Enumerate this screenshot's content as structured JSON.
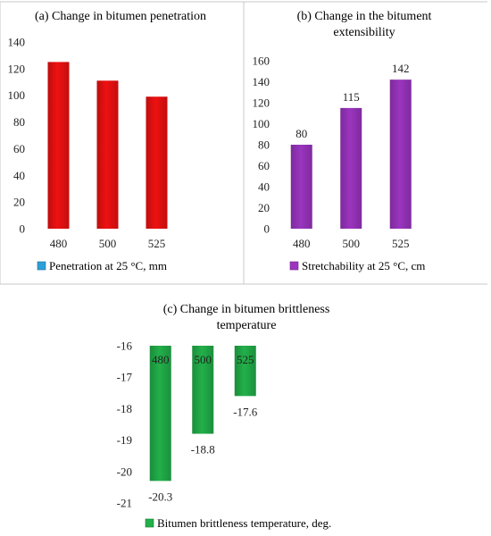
{
  "chart_data": [
    {
      "type": "bar",
      "title": "(a) Change in bitumen penetration",
      "categories": [
        "480",
        "500",
        "525"
      ],
      "series": [
        {
          "name": "Penetration at 25 °C, mm",
          "values": [
            125,
            111,
            99
          ],
          "color": "#ee1111"
        }
      ],
      "ylim": [
        0,
        140
      ],
      "yticks": [
        0,
        20,
        40,
        60,
        80,
        100,
        120,
        140
      ],
      "legend_marker_color": "#2e9fd6",
      "data_labels": false,
      "grid": false,
      "legend": "bottom"
    },
    {
      "type": "bar",
      "title": [
        "(b) Change in the bitument",
        "extensibility"
      ],
      "categories": [
        "480",
        "500",
        "525"
      ],
      "series": [
        {
          "name": "Stretchability at 25 °C, cm",
          "values": [
            80,
            115,
            142
          ],
          "color": "#9b35c0"
        }
      ],
      "ylim": [
        0,
        160
      ],
      "yticks": [
        0,
        20,
        40,
        60,
        80,
        100,
        120,
        140,
        160
      ],
      "legend_marker_color": "#9b35c0",
      "data_labels": true,
      "grid": false,
      "legend": "bottom"
    },
    {
      "type": "bar",
      "title": [
        "(c) Change in bitumen brittleness",
        "temperature"
      ],
      "categories": [
        "480",
        "500",
        "525"
      ],
      "series": [
        {
          "name": "Bitumen brittleness temperature, deg.",
          "values": [
            -20.3,
            -18.8,
            -17.6
          ],
          "color": "#22b04a"
        }
      ],
      "ylim": [
        -21,
        -16
      ],
      "yticks": [
        -16,
        -17,
        -18,
        -19,
        -20,
        -21
      ],
      "legend_marker_color": "#22b04a",
      "data_labels": true,
      "grid": false,
      "legend": "bottom"
    }
  ]
}
